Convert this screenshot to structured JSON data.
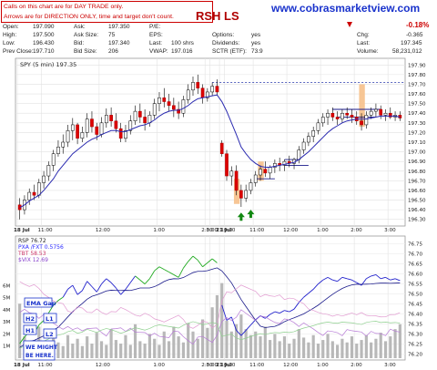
{
  "header": {
    "notice_line1": "Calls on this chart are for DAY TRADE only.",
    "notice_line2": "Arrows are for DIRECTION ONLY, time and target don't count.",
    "ticker": "RSH LS",
    "site_url": "www.cobrasmarketview.com",
    "change_pct": "-0.18%",
    "quote_labels": {
      "open": "Open:",
      "high": "High:",
      "low": "Low:",
      "prev_close": "Prev Close:",
      "ask": "Ask:",
      "ask_size": "Ask Size:",
      "bid": "Bid:",
      "bid_size": "Bid Size:",
      "pe": "P/E:",
      "eps": "EPS:",
      "last": "Last:",
      "vwap": "VWAP:",
      "options": "Options:",
      "dividends": "Dividends:",
      "sctr": "SCTR (ETF):",
      "chg": "Chg:",
      "last2": "Last:",
      "volume": "Volume:"
    },
    "quote_values": {
      "open": "197.090",
      "high": "197.500",
      "low": "196.430",
      "prev_close": "197.710",
      "ask": "197.350",
      "ask_size": "75",
      "bid": "197.340",
      "bid_size": "206",
      "last": "100 shrs",
      "vwap": "197.016",
      "options": "yes",
      "dividends": "yes",
      "sctr": "73.9",
      "chg": "-0.365",
      "last2": "197.345",
      "volume": "58,231,012"
    }
  },
  "price_chart": {
    "legend": "SPY (5 min) 197.35",
    "y_ticks": [
      "197.90",
      "197.80",
      "197.70",
      "197.60",
      "197.50",
      "197.40",
      "197.30",
      "197.20",
      "197.10",
      "197.00",
      "196.90",
      "196.80",
      "196.70",
      "196.60",
      "196.50",
      "196.40",
      "196.30"
    ],
    "x_labels": [
      "18 Jul",
      "11:00",
      "12:00",
      "1:00",
      "2:00",
      "3:00",
      "21 Jul",
      "10:00",
      "11:00",
      "12:00",
      "1:00",
      "2:00",
      "3:00"
    ]
  },
  "lower_chart": {
    "legend_rsp": "RSP 76.72",
    "legend_pxa": "PXA /FXT 0.5756",
    "legend_tbt": "TBT 58.53",
    "legend_vix": "$VIX 12.69",
    "volume_ticks": [
      "6M",
      "5M",
      "4M",
      "3M",
      "2M",
      "1M"
    ],
    "right_ticks": [
      "76.75",
      "76.70",
      "76.65",
      "76.60",
      "76.55",
      "76.50",
      "76.45",
      "76.40",
      "76.35",
      "76.30",
      "76.25",
      "76.20"
    ],
    "x_labels": [
      "18 Jul",
      "11:00",
      "12:00",
      "1:00",
      "2:00",
      "3:00",
      "21 Jul",
      "10:00",
      "11:00",
      "12:00",
      "1:00",
      "2:00",
      "3:00"
    ]
  },
  "annotations": {
    "ema_gap": "EMA Gap",
    "h2": "H2",
    "l1": "L1",
    "h1": "H1",
    "l2": "L2",
    "we_might": "WE MIGHT",
    "be_here": "BE HERE."
  },
  "chart_data": {
    "type": "candlestick",
    "title": "SPY (5 min) 197.35",
    "ylim": [
      196.25,
      197.95
    ],
    "ohlc": [
      [
        196.45,
        196.52,
        196.3,
        196.4
      ],
      [
        196.4,
        196.55,
        196.35,
        196.5
      ],
      [
        196.5,
        196.62,
        196.45,
        196.58
      ],
      [
        196.58,
        196.66,
        196.5,
        196.55
      ],
      [
        196.55,
        196.72,
        196.52,
        196.68
      ],
      [
        196.68,
        196.8,
        196.62,
        196.75
      ],
      [
        196.75,
        196.9,
        196.7,
        196.86
      ],
      [
        196.86,
        197.02,
        196.8,
        196.98
      ],
      [
        196.98,
        197.12,
        196.95,
        197.05
      ],
      [
        197.05,
        197.18,
        196.98,
        197.1
      ],
      [
        197.1,
        197.28,
        197.05,
        197.22
      ],
      [
        197.22,
        197.35,
        197.12,
        197.28
      ],
      [
        197.28,
        197.3,
        197.08,
        197.14
      ],
      [
        197.14,
        197.26,
        197.1,
        197.2
      ],
      [
        197.2,
        197.4,
        197.15,
        197.34
      ],
      [
        197.34,
        197.42,
        197.2,
        197.26
      ],
      [
        197.26,
        197.3,
        197.12,
        197.18
      ],
      [
        197.18,
        197.36,
        197.15,
        197.3
      ],
      [
        197.3,
        197.45,
        197.25,
        197.38
      ],
      [
        197.38,
        197.46,
        197.26,
        197.32
      ],
      [
        197.32,
        197.4,
        197.2,
        197.24
      ],
      [
        197.24,
        197.3,
        197.1,
        197.14
      ],
      [
        197.14,
        197.28,
        197.1,
        197.22
      ],
      [
        197.22,
        197.38,
        197.18,
        197.32
      ],
      [
        197.32,
        197.48,
        197.28,
        197.42
      ],
      [
        197.42,
        197.5,
        197.3,
        197.36
      ],
      [
        197.36,
        197.44,
        197.22,
        197.3
      ],
      [
        197.3,
        197.42,
        197.26,
        197.38
      ],
      [
        197.38,
        197.55,
        197.34,
        197.5
      ],
      [
        197.5,
        197.62,
        197.42,
        197.56
      ],
      [
        197.56,
        197.66,
        197.46,
        197.52
      ],
      [
        197.52,
        197.6,
        197.42,
        197.48
      ],
      [
        197.48,
        197.56,
        197.36,
        197.44
      ],
      [
        197.44,
        197.52,
        197.34,
        197.4
      ],
      [
        197.4,
        197.58,
        197.36,
        197.54
      ],
      [
        197.54,
        197.7,
        197.5,
        197.64
      ],
      [
        197.64,
        197.78,
        197.58,
        197.72
      ],
      [
        197.72,
        197.8,
        197.6,
        197.66
      ],
      [
        197.66,
        197.7,
        197.5,
        197.56
      ],
      [
        197.56,
        197.66,
        197.52,
        197.62
      ],
      [
        197.62,
        197.72,
        197.58,
        197.68
      ],
      [
        197.68,
        197.75,
        197.58,
        197.62
      ],
      [
        197.09,
        197.12,
        196.95,
        196.98
      ],
      [
        196.98,
        197.02,
        196.7,
        196.75
      ],
      [
        196.75,
        196.85,
        196.65,
        196.8
      ],
      [
        196.8,
        196.86,
        196.55,
        196.6
      ],
      [
        196.6,
        196.66,
        196.43,
        196.52
      ],
      [
        196.52,
        196.66,
        196.48,
        196.6
      ],
      [
        196.6,
        196.72,
        196.56,
        196.68
      ],
      [
        196.68,
        196.8,
        196.64,
        196.76
      ],
      [
        196.76,
        196.86,
        196.7,
        196.82
      ],
      [
        196.82,
        196.9,
        196.74,
        196.78
      ],
      [
        196.78,
        196.86,
        196.72,
        196.84
      ],
      [
        196.84,
        196.92,
        196.78,
        196.88
      ],
      [
        196.88,
        196.94,
        196.8,
        196.86
      ],
      [
        196.86,
        196.92,
        196.8,
        196.9
      ],
      [
        196.9,
        196.96,
        196.84,
        196.88
      ],
      [
        196.88,
        196.94,
        196.82,
        196.92
      ],
      [
        196.92,
        197.06,
        196.88,
        197.02
      ],
      [
        197.02,
        197.14,
        196.98,
        197.1
      ],
      [
        197.1,
        197.2,
        197.06,
        197.16
      ],
      [
        197.16,
        197.26,
        197.1,
        197.22
      ],
      [
        197.22,
        197.34,
        197.18,
        197.3
      ],
      [
        197.3,
        197.4,
        197.26,
        197.36
      ],
      [
        197.36,
        197.44,
        197.28,
        197.4
      ],
      [
        197.4,
        197.46,
        197.32,
        197.36
      ],
      [
        197.36,
        197.42,
        197.28,
        197.34
      ],
      [
        197.34,
        197.44,
        197.3,
        197.4
      ],
      [
        197.4,
        197.46,
        197.34,
        197.38
      ],
      [
        197.38,
        197.44,
        197.3,
        197.36
      ],
      [
        197.36,
        197.42,
        197.28,
        197.32
      ],
      [
        197.32,
        197.4,
        197.22,
        197.28
      ],
      [
        197.28,
        197.42,
        197.24,
        197.38
      ],
      [
        197.38,
        197.46,
        197.34,
        197.42
      ],
      [
        197.42,
        197.5,
        197.36,
        197.44
      ],
      [
        197.44,
        197.48,
        197.34,
        197.38
      ],
      [
        197.38,
        197.44,
        197.32,
        197.4
      ],
      [
        197.4,
        197.46,
        197.34,
        197.36
      ],
      [
        197.36,
        197.42,
        197.32,
        197.38
      ],
      [
        197.38,
        197.42,
        197.32,
        197.35
      ]
    ],
    "ema": [
      196.42,
      196.45,
      196.49,
      196.52,
      196.55,
      196.6,
      196.66,
      196.72,
      196.8,
      196.86,
      196.92,
      196.98,
      197.02,
      197.06,
      197.1,
      197.13,
      197.15,
      197.18,
      197.2,
      197.22,
      197.22,
      197.21,
      197.21,
      197.23,
      197.25,
      197.27,
      197.28,
      197.3,
      197.33,
      197.37,
      197.4,
      197.42,
      197.43,
      197.43,
      197.45,
      197.48,
      197.52,
      197.55,
      197.56,
      197.57,
      197.58,
      197.59,
      197.52,
      197.42,
      197.3,
      197.18,
      197.05,
      196.98,
      196.92,
      196.88,
      196.85,
      196.84,
      196.84,
      196.85,
      196.86,
      196.87,
      196.88,
      196.89,
      196.92,
      196.96,
      197.0,
      197.05,
      197.1,
      197.15,
      197.2,
      197.24,
      197.27,
      197.3,
      197.32,
      197.33,
      197.34,
      197.34,
      197.34,
      197.35,
      197.36,
      197.37,
      197.37,
      197.37,
      197.37,
      197.36
    ],
    "reference_line": 197.72,
    "volume": [
      4.5,
      1.8,
      1.2,
      1.5,
      2.6,
      1.1,
      1.4,
      2.2,
      1.3,
      1.0,
      1.9,
      1.2,
      1.6,
      1.0,
      1.8,
      1.2,
      2.1,
      1.4,
      1.1,
      2.4,
      1.5,
      1.2,
      1.9,
      1.1,
      2.8,
      1.4,
      1.2,
      2.0,
      1.6,
      1.1,
      2.2,
      1.4,
      2.6,
      1.8,
      1.3,
      2.9,
      2.2,
      1.6,
      3.2,
      2.5,
      4.2,
      5.2,
      6.2,
      3.1,
      2.2,
      2.8,
      3.6,
      2.4,
      1.9,
      2.2,
      1.8,
      2.6,
      1.5,
      2.0,
      1.4,
      1.8,
      1.2,
      1.6,
      2.4,
      1.7,
      1.3,
      1.9,
      1.2,
      1.5,
      2.0,
      1.4,
      1.1,
      1.6,
      1.3,
      1.8,
      1.2,
      1.5,
      1.9,
      1.3,
      1.6,
      2.1,
      1.4,
      1.8,
      2.4,
      2.8
    ]
  }
}
